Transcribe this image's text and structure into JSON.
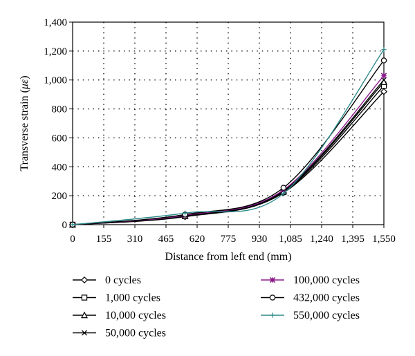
{
  "chart_data": {
    "type": "line",
    "title": "",
    "xlabel": "Distance from left end (mm)",
    "ylabel_prefix": "Transverse strain (",
    "ylabel_unit": "με",
    "ylabel_suffix": ")",
    "xlim": [
      0,
      1550
    ],
    "ylim": [
      0,
      1400
    ],
    "x_ticks": [
      0,
      155,
      310,
      465,
      620,
      775,
      930,
      1085,
      1240,
      1395,
      1550
    ],
    "x_tick_labels": [
      "0",
      "155",
      "310",
      "465",
      "620",
      "775",
      "930",
      "1,085",
      "1,240",
      "1,395",
      "1,550"
    ],
    "y_ticks": [
      0,
      200,
      400,
      600,
      800,
      1000,
      1200,
      1400
    ],
    "y_tick_labels": [
      "0",
      "200",
      "400",
      "600",
      "800",
      "1,000",
      "1,200",
      "1,400"
    ],
    "grid": "dotted",
    "legend_position": "bottom",
    "x": [
      0,
      560,
      1050,
      1550
    ],
    "series": [
      {
        "name": "0 cycles",
        "marker": "diamond",
        "color": "#000000",
        "values": [
          0,
          55,
          220,
          920
        ]
      },
      {
        "name": "1,000 cycles",
        "marker": "square",
        "color": "#000000",
        "values": [
          0,
          58,
          225,
          960
        ]
      },
      {
        "name": "10,000 cycles",
        "marker": "triangle",
        "color": "#000000",
        "values": [
          0,
          60,
          230,
          985
        ]
      },
      {
        "name": "50,000 cycles",
        "marker": "x",
        "color": "#000000",
        "values": [
          0,
          62,
          235,
          1000
        ]
      },
      {
        "name": "100,000 cycles",
        "marker": "star",
        "color": "#8b1a8b",
        "values": [
          0,
          65,
          240,
          1030
        ]
      },
      {
        "name": "432,000 cycles",
        "marker": "circle",
        "color": "#000000",
        "values": [
          0,
          70,
          255,
          1135
        ]
      },
      {
        "name": "550,000 cycles",
        "marker": "plus",
        "color": "#2e8b8b",
        "values": [
          0,
          80,
          215,
          1210
        ]
      }
    ]
  }
}
